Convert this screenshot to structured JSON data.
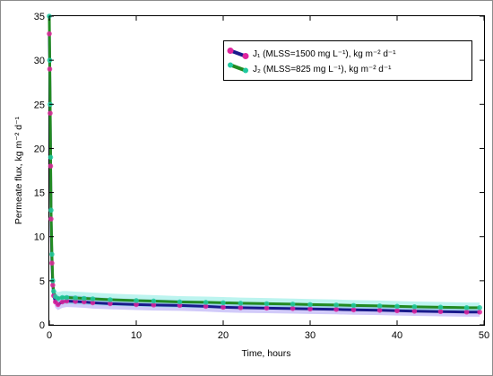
{
  "chart_data": {
    "type": "line",
    "xlabel": "Time, hours",
    "ylabel": "Permeate flux, kg m⁻² d⁻¹",
    "xlim": [
      0,
      50
    ],
    "ylim": [
      0,
      35
    ],
    "xticks": [
      0,
      10,
      20,
      30,
      40,
      50
    ],
    "yticks": [
      0,
      5,
      10,
      15,
      20,
      25,
      30,
      35
    ],
    "grid": false,
    "legend_position": "top-right",
    "series": [
      {
        "name": "J₁ (MLSS=1500 mg L⁻¹), kg m⁻² d⁻¹",
        "line_color": "#1a1a8c",
        "marker_color": "#e0259e",
        "band_color": "#7b68ee",
        "x": [
          0,
          0.05,
          0.1,
          0.15,
          0.2,
          0.3,
          0.4,
          0.5,
          0.7,
          1,
          1.5,
          2,
          3,
          4,
          5,
          7,
          10,
          12,
          15,
          18,
          20,
          22,
          25,
          28,
          30,
          33,
          35,
          38,
          40,
          42,
          45,
          48,
          49.5
        ],
        "values": [
          33,
          29,
          24,
          18,
          12,
          7,
          4.5,
          3.3,
          2.6,
          2.3,
          2.6,
          2.7,
          2.65,
          2.6,
          2.5,
          2.4,
          2.3,
          2.25,
          2.2,
          2.1,
          2.0,
          1.95,
          1.9,
          1.85,
          1.8,
          1.75,
          1.7,
          1.65,
          1.6,
          1.55,
          1.5,
          1.45,
          1.45
        ]
      },
      {
        "name": "J₂ (MLSS=825 mg L⁻¹), kg m⁻² d⁻¹",
        "line_color": "#228b22",
        "marker_color": "#20c9a0",
        "band_color": "#40e0d0",
        "x": [
          0,
          0.05,
          0.1,
          0.15,
          0.2,
          0.3,
          0.4,
          0.5,
          0.7,
          1,
          1.5,
          2,
          3,
          4,
          5,
          7,
          10,
          12,
          15,
          18,
          20,
          22,
          25,
          28,
          30,
          33,
          35,
          38,
          40,
          42,
          45,
          48,
          49.5
        ],
        "values": [
          35,
          30,
          25,
          19,
          13,
          8,
          5,
          3.8,
          3.2,
          3.0,
          3.1,
          3.1,
          3.05,
          3.0,
          2.95,
          2.85,
          2.75,
          2.7,
          2.6,
          2.55,
          2.5,
          2.45,
          2.4,
          2.35,
          2.3,
          2.25,
          2.2,
          2.15,
          2.1,
          2.05,
          2.0,
          1.95,
          1.95
        ]
      }
    ]
  }
}
